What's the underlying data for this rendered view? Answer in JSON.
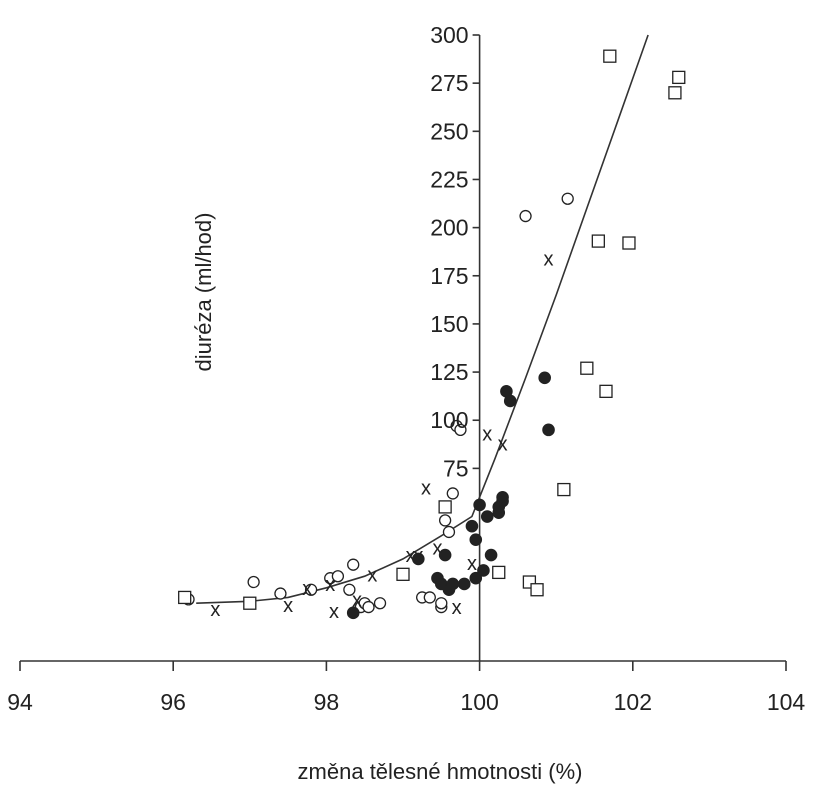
{
  "chart_data": {
    "type": "scatter",
    "xlabel": "změna tělesné hmotnosti (%)",
    "ylabel": "diuréza (ml/hod)",
    "xlim": [
      94,
      104
    ],
    "ylim": [
      -25,
      300
    ],
    "x_ticks": [
      94,
      96,
      98,
      100,
      102,
      104
    ],
    "y_ticks": [
      75,
      100,
      125,
      150,
      175,
      200,
      225,
      250,
      275,
      300
    ],
    "grid": false,
    "legend": "none",
    "y_axis_crosses_x_at": 100,
    "colors": {
      "axis": "#333333",
      "marker": "#222222",
      "curve": "#333333"
    },
    "series": [
      {
        "marker": "circle-open",
        "points": [
          [
            96.2,
            7
          ],
          [
            97.05,
            16
          ],
          [
            97.4,
            10
          ],
          [
            97.8,
            12
          ],
          [
            98.05,
            18
          ],
          [
            98.15,
            19
          ],
          [
            98.3,
            12
          ],
          [
            98.35,
            25
          ],
          [
            98.45,
            3
          ],
          [
            98.5,
            5
          ],
          [
            98.55,
            3
          ],
          [
            98.7,
            5
          ],
          [
            99.25,
            8
          ],
          [
            99.35,
            8
          ],
          [
            99.5,
            3
          ],
          [
            99.5,
            5
          ],
          [
            99.55,
            48
          ],
          [
            99.6,
            42
          ],
          [
            99.65,
            62
          ],
          [
            99.7,
            97
          ],
          [
            99.75,
            95
          ],
          [
            100.6,
            206
          ],
          [
            101.15,
            215
          ]
        ]
      },
      {
        "marker": "square-open",
        "points": [
          [
            96.15,
            8
          ],
          [
            97.0,
            5
          ],
          [
            99.0,
            20
          ],
          [
            99.55,
            55
          ],
          [
            100.25,
            21
          ],
          [
            100.65,
            16
          ],
          [
            100.75,
            12
          ],
          [
            101.1,
            64
          ],
          [
            101.4,
            127
          ],
          [
            101.55,
            193
          ],
          [
            101.65,
            115
          ],
          [
            101.7,
            289
          ],
          [
            101.95,
            192
          ],
          [
            102.55,
            270
          ],
          [
            102.6,
            278
          ]
        ]
      },
      {
        "marker": "x",
        "points": [
          [
            96.55,
            2
          ],
          [
            97.5,
            4
          ],
          [
            97.75,
            13
          ],
          [
            98.05,
            15
          ],
          [
            98.1,
            1
          ],
          [
            98.4,
            7
          ],
          [
            98.6,
            20
          ],
          [
            99.1,
            30
          ],
          [
            99.2,
            30
          ],
          [
            99.3,
            65
          ],
          [
            99.45,
            34
          ],
          [
            99.7,
            3
          ],
          [
            99.9,
            26
          ],
          [
            100.1,
            93
          ],
          [
            100.3,
            88
          ],
          [
            100.9,
            184
          ]
        ]
      },
      {
        "marker": "circle-filled",
        "points": [
          [
            98.35,
            0
          ],
          [
            99.2,
            28
          ],
          [
            99.45,
            18
          ],
          [
            99.5,
            15
          ],
          [
            99.55,
            30
          ],
          [
            99.6,
            12
          ],
          [
            99.65,
            15
          ],
          [
            99.8,
            15
          ],
          [
            99.9,
            45
          ],
          [
            99.95,
            38
          ],
          [
            99.95,
            18
          ],
          [
            100.0,
            56
          ],
          [
            100.05,
            22
          ],
          [
            100.1,
            50
          ],
          [
            100.15,
            30
          ],
          [
            100.25,
            52
          ],
          [
            100.25,
            55
          ],
          [
            100.3,
            58
          ],
          [
            100.3,
            60
          ],
          [
            100.35,
            115
          ],
          [
            100.4,
            110
          ],
          [
            100.85,
            122
          ],
          [
            100.9,
            95
          ]
        ]
      }
    ],
    "curve": {
      "type": "trend-line",
      "points": [
        [
          96.3,
          5
        ],
        [
          97.0,
          6
        ],
        [
          97.5,
          8
        ],
        [
          98.0,
          13
        ],
        [
          98.5,
          19
        ],
        [
          99.0,
          28
        ],
        [
          99.5,
          40
        ],
        [
          99.9,
          50
        ],
        [
          100.2,
          80
        ],
        [
          100.6,
          122
        ],
        [
          101.0,
          165
        ],
        [
          101.4,
          210
        ],
        [
          101.8,
          255
        ],
        [
          102.2,
          300
        ]
      ]
    }
  }
}
